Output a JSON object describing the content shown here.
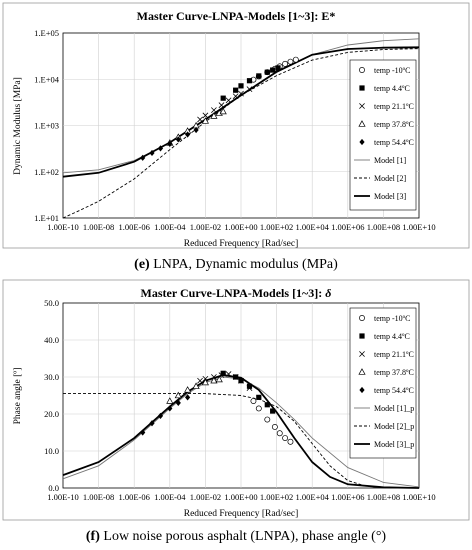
{
  "chart_data": [
    {
      "type": "scatter",
      "title": "Master Curve-LNPA-Models [1~3]: E*",
      "xlabel": "Reduced Frequency [Rad/sec]",
      "ylabel": "Dynamic Modulus [MPa]",
      "xscale": "log",
      "yscale": "log",
      "xlim": [
        1e-10,
        10000000000.0
      ],
      "ylim": [
        10,
        100000
      ],
      "x_ticks": [
        "1.00E-10",
        "1.00E-08",
        "1.00E-06",
        "1.00E-04",
        "1.00E-02",
        "1.00E+00",
        "1.00E+02",
        "1.00E+04",
        "1.00E+06",
        "1.00E+08",
        "1.00E+10"
      ],
      "y_ticks": [
        "1.E+01",
        "1.E+02",
        "1.E+03",
        "1.E+04",
        "1.E+05"
      ],
      "grid": true,
      "legend_position": "right",
      "caption_label": "(e)",
      "caption_text": " LNPA, Dynamic modulus (MPa)",
      "series": [
        {
          "name": "temp -10ºC",
          "marker": "circle-open",
          "x": [
            5,
            10,
            30,
            80,
            150,
            300,
            600,
            1200
          ],
          "y": [
            9800,
            11500,
            14200,
            16800,
            19000,
            21500,
            24000,
            26500
          ]
        },
        {
          "name": "temp 4.4ºC",
          "marker": "square-filled",
          "x": [
            0.1,
            0.5,
            1,
            3,
            10,
            30,
            60,
            120
          ],
          "y": [
            3900,
            5800,
            7200,
            9300,
            11800,
            14200,
            15800,
            17600
          ]
        },
        {
          "name": "temp 21.1ºC",
          "marker": "x",
          "x": [
            0.005,
            0.01,
            0.03,
            0.08,
            0.2,
            0.5,
            1,
            3
          ],
          "y": [
            1350,
            1650,
            2150,
            2750,
            3500,
            4300,
            4900,
            6100
          ]
        },
        {
          "name": "temp 37.8ºC",
          "marker": "triangle-open",
          "x": [
            0.0001,
            0.0003,
            0.001,
            0.003,
            0.01,
            0.03,
            0.06,
            0.1
          ],
          "y": [
            420,
            560,
            760,
            990,
            1250,
            1600,
            1850,
            2000
          ]
        },
        {
          "name": "temp 54.4ºC",
          "marker": "diamond-filled",
          "x": [
            3e-06,
            1e-05,
            3e-05,
            0.0001,
            0.0003,
            0.001,
            0.003
          ],
          "y": [
            200,
            255,
            320,
            400,
            500,
            640,
            800
          ]
        },
        {
          "name": "Model [1]",
          "style": "thin-solid",
          "x": [
            1e-10,
            1e-08,
            1e-06,
            0.0001,
            0.01,
            1,
            100,
            10000.0,
            1000000.0,
            100000000.0,
            10000000000.0
          ],
          "y": [
            95,
            110,
            175,
            420,
            1300,
            4400,
            14000,
            34000,
            55000,
            68000,
            75000
          ]
        },
        {
          "name": "Model [2]",
          "style": "dashed",
          "x": [
            1e-10,
            1e-09,
            1e-08,
            1e-06,
            0.0001,
            0.01,
            1,
            100,
            10000.0,
            1000000.0,
            100000000.0,
            10000000000.0
          ],
          "y": [
            10,
            15,
            23,
            70,
            300,
            1200,
            4500,
            12000,
            26000,
            38000,
            44000,
            46000
          ]
        },
        {
          "name": "Model [3]",
          "style": "thick-solid",
          "x": [
            1e-10,
            1e-08,
            1e-06,
            0.0001,
            0.01,
            1,
            100,
            10000.0,
            1000000.0,
            100000000.0,
            10000000000.0
          ],
          "y": [
            78,
            95,
            165,
            430,
            1350,
            4500,
            14500,
            34000,
            45000,
            48000,
            49000
          ]
        }
      ]
    },
    {
      "type": "scatter",
      "title": "Master Curve-LNPA-Models [1~3]: ",
      "title_symbol": "δ",
      "xlabel": "Reduced Frequency [Rad/sec]",
      "ylabel": "Phase angle [º]",
      "xscale": "log",
      "yscale": "linear",
      "xlim": [
        1e-10,
        10000000000.0
      ],
      "ylim": [
        0,
        50
      ],
      "x_ticks": [
        "1.00E-10",
        "1.00E-08",
        "1.00E-06",
        "1.00E-04",
        "1.00E-02",
        "1.00E+00",
        "1.00E+02",
        "1.00E+04",
        "1.00E+06",
        "1.00E+08",
        "1.00E+10"
      ],
      "y_ticks": [
        "0.0",
        "10.0",
        "20.0",
        "30.0",
        "40.0",
        "50.0"
      ],
      "grid": true,
      "legend_position": "right",
      "caption_label": "(f)",
      "caption_text": " Low noise porous asphalt (LNPA), phase angle (°)",
      "series": [
        {
          "name": "temp -10ºC",
          "marker": "circle-open",
          "x": [
            5,
            10,
            30,
            80,
            150,
            300,
            600
          ],
          "y": [
            23.5,
            21.5,
            18.5,
            16.5,
            14.8,
            13.5,
            12.5
          ]
        },
        {
          "name": "temp 4.4ºC",
          "marker": "square-filled",
          "x": [
            0.1,
            0.5,
            1,
            3,
            10,
            30,
            60
          ],
          "y": [
            31.0,
            30.0,
            29.0,
            27.5,
            24.5,
            22.5,
            20.8
          ]
        },
        {
          "name": "temp 21.1ºC",
          "marker": "x",
          "x": [
            0.005,
            0.01,
            0.03,
            0.08,
            0.2,
            0.5,
            1,
            3
          ],
          "y": [
            29.0,
            29.5,
            30.0,
            30.5,
            30.8,
            30.0,
            29.0,
            27.0
          ]
        },
        {
          "name": "temp 37.8ºC",
          "marker": "triangle-open",
          "x": [
            0.0001,
            0.0003,
            0.001,
            0.003,
            0.01,
            0.03,
            0.06
          ],
          "y": [
            23.5,
            25.0,
            26.5,
            27.5,
            28.5,
            29.0,
            29.3
          ]
        },
        {
          "name": "temp 54.4ºC",
          "marker": "diamond-filled",
          "x": [
            3e-06,
            1e-05,
            3e-05,
            0.0001,
            0.0003,
            0.001
          ],
          "y": [
            15.0,
            17.5,
            19.5,
            21.5,
            23.0,
            24.5
          ]
        },
        {
          "name": "Model [1]_p",
          "style": "thin-solid",
          "x": [
            1e-10,
            1e-08,
            1e-06,
            0.0001,
            0.001,
            0.01,
            0.1,
            1,
            10,
            100,
            1000.0,
            10000.0,
            1000000.0,
            100000000.0,
            10000000000.0
          ],
          "y": [
            2.5,
            6.0,
            13.0,
            21.5,
            25.5,
            28.5,
            30.0,
            29.5,
            27.0,
            23.0,
            18.5,
            13.5,
            5.5,
            1.5,
            0.3
          ]
        },
        {
          "name": "Model [2]_p",
          "style": "dashed",
          "x": [
            1e-10,
            1e-06,
            0.0001,
            0.01,
            1,
            10,
            100,
            1000.0,
            10000.0,
            100000.0,
            1000000.0,
            10000000.0,
            100000000.0,
            10000000000.0
          ],
          "y": [
            25.5,
            25.5,
            25.5,
            25.5,
            25.0,
            24.0,
            22.0,
            18.0,
            12.0,
            6.0,
            2.0,
            0.5,
            0.1,
            0.0
          ]
        },
        {
          "name": "Model [3]_p",
          "style": "thick-solid",
          "x": [
            1e-10,
            1e-08,
            1e-06,
            0.0001,
            0.001,
            0.01,
            0.1,
            1,
            10,
            100,
            1000.0,
            10000.0,
            100000.0,
            1000000.0,
            100000000.0,
            10000000000.0
          ],
          "y": [
            3.5,
            7.0,
            13.5,
            22.0,
            26.0,
            29.0,
            30.5,
            29.8,
            26.5,
            20.5,
            13.5,
            7.0,
            3.0,
            1.0,
            0.2,
            0.0
          ]
        }
      ]
    }
  ]
}
